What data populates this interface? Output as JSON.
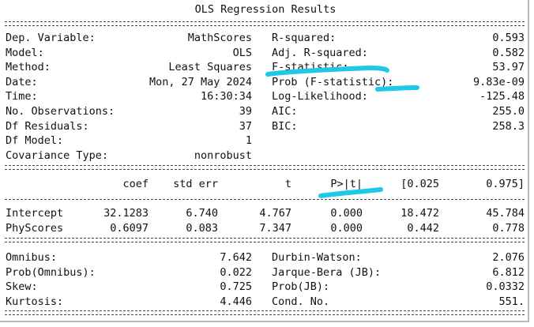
{
  "title": "OLS Regression Results",
  "model_info_left": [
    {
      "label": "Dep. Variable:",
      "value": "MathScores"
    },
    {
      "label": "Model:",
      "value": "OLS"
    },
    {
      "label": "Method:",
      "value": "Least Squares"
    },
    {
      "label": "Date:",
      "value": "Mon, 27 May 2024"
    },
    {
      "label": "Time:",
      "value": "16:30:34"
    },
    {
      "label": "No. Observations:",
      "value": "39"
    },
    {
      "label": "Df Residuals:",
      "value": "37"
    },
    {
      "label": "Df Model:",
      "value": "1"
    },
    {
      "label": "Covariance Type:",
      "value": "nonrobust"
    }
  ],
  "model_info_right": [
    {
      "label": "R-squared:",
      "value": "0.593"
    },
    {
      "label": "Adj. R-squared:",
      "value": "0.582"
    },
    {
      "label": "F-statistic:",
      "value": "53.97"
    },
    {
      "label": "Prob (F-statistic):",
      "value": "9.83e-09"
    },
    {
      "label": "Log-Likelihood:",
      "value": "-125.48"
    },
    {
      "label": "AIC:",
      "value": "255.0"
    },
    {
      "label": "BIC:",
      "value": "258.3"
    }
  ],
  "coef_headers": [
    "coef",
    "std err",
    "t",
    "P>|t|",
    "[0.025",
    "0.975]"
  ],
  "coef_rows": [
    {
      "name": "Intercept",
      "values": [
        "32.1283",
        "6.740",
        "4.767",
        "0.000",
        "18.472",
        "45.784"
      ]
    },
    {
      "name": "PhyScores",
      "values": [
        "0.6097",
        "0.083",
        "7.347",
        "0.000",
        "0.442",
        "0.778"
      ]
    }
  ],
  "diag_left": [
    {
      "label": "Omnibus:",
      "value": "7.642"
    },
    {
      "label": "Prob(Omnibus):",
      "value": "0.022"
    },
    {
      "label": "Skew:",
      "value": "0.725"
    },
    {
      "label": "Kurtosis:",
      "value": "4.446"
    }
  ],
  "diag_right": [
    {
      "label": "Durbin-Watson:",
      "value": "2.076"
    },
    {
      "label": "Jarque-Bera (JB):",
      "value": "6.812"
    },
    {
      "label": "Prob(JB):",
      "value": "0.0332"
    },
    {
      "label": "Cond. No.",
      "value": "551."
    }
  ],
  "highlight_color": "#1ec8e6"
}
